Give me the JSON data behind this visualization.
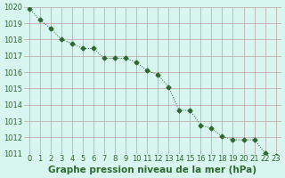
{
  "x": [
    0,
    1,
    2,
    3,
    4,
    5,
    6,
    7,
    8,
    9,
    10,
    11,
    12,
    13,
    14,
    15,
    16,
    17,
    18,
    19,
    20,
    21,
    22,
    23
  ],
  "y": [
    1019.9,
    1019.2,
    1018.7,
    1018.0,
    1017.75,
    1017.45,
    1017.45,
    1016.85,
    1016.85,
    1016.85,
    1016.6,
    1016.1,
    1015.85,
    1015.1,
    1013.65,
    1013.65,
    1012.75,
    1012.55,
    1012.05,
    1011.85,
    1011.85,
    1011.85,
    1011.05,
    1010.85
  ],
  "ylim": [
    1011,
    1020
  ],
  "xlim": [
    -0.5,
    23.5
  ],
  "yticks": [
    1011,
    1012,
    1013,
    1014,
    1015,
    1016,
    1017,
    1018,
    1019,
    1020
  ],
  "xticks": [
    0,
    1,
    2,
    3,
    4,
    5,
    6,
    7,
    8,
    9,
    10,
    11,
    12,
    13,
    14,
    15,
    16,
    17,
    18,
    19,
    20,
    21,
    22,
    23
  ],
  "xlabel": "Graphe pression niveau de la mer (hPa)",
  "line_color": "#2d6a2d",
  "marker": "D",
  "marker_size": 2.5,
  "line_width": 0.7,
  "bg_color": "#d8f5f0",
  "grid_color": "#c0a0a0",
  "label_color": "#2d6a2d",
  "tick_fontsize": 6,
  "xlabel_fontsize": 7.5
}
